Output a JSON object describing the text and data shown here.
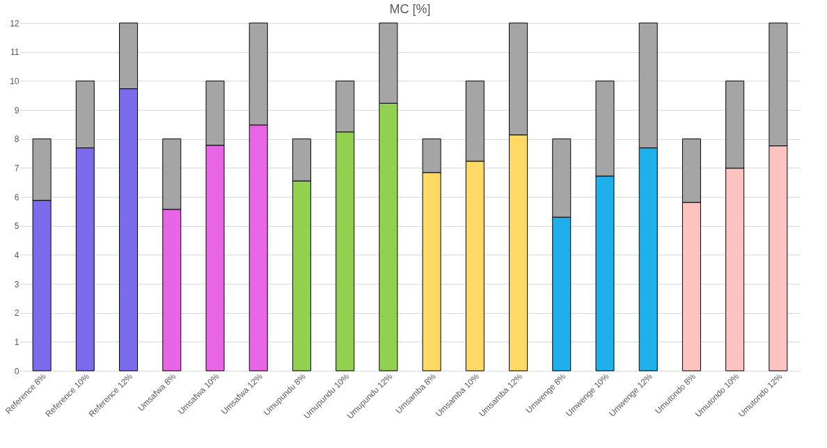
{
  "chart_data": {
    "type": "bar",
    "title": "MC [%]",
    "stacked": true,
    "categories": [
      "Reference 8%",
      "Reference 10%",
      "Reference 12%",
      "Umsafwa 8%",
      "Umsafwa 10%",
      "Umsafwa 12%",
      "Umupundu 8%",
      "Umupundu 10%",
      "Umupundu 12%",
      "Umsamba 8%",
      "Umsamba 10%",
      "Umsamba 12%",
      "Umwenge 8%",
      "Umwenge 10%",
      "Umwenge 12%",
      "Umutondo 8%",
      "Umutondo 10%",
      "Umutondo 12%"
    ],
    "series": [
      {
        "colors": [
          "#7b6cee",
          "#7b6cee",
          "#7b6cee",
          "#e866e6",
          "#e866e6",
          "#e866e6",
          "#92d050",
          "#92d050",
          "#92d050",
          "#ffd966",
          "#ffd966",
          "#ffd966",
          "#1eb0ea",
          "#1eb0ea",
          "#1eb0ea",
          "#ffc4c0",
          "#ffc4c0",
          "#ffc4c0"
        ],
        "values": [
          5.88,
          7.69,
          9.73,
          5.57,
          7.78,
          8.48,
          6.55,
          8.24,
          9.23,
          6.84,
          7.23,
          8.14,
          5.3,
          6.72,
          7.69,
          5.81,
          6.99,
          7.76
        ]
      },
      {
        "color": "#a5a5a5",
        "values": [
          2.12,
          2.31,
          2.27,
          2.43,
          2.22,
          3.52,
          1.45,
          1.76,
          2.77,
          1.16,
          2.77,
          3.86,
          2.7,
          3.28,
          4.31,
          2.19,
          3.01,
          4.24
        ]
      }
    ],
    "ylim": [
      0,
      12
    ],
    "yticks": [
      0,
      1,
      2,
      3,
      4,
      5,
      6,
      7,
      8,
      9,
      10,
      11,
      12
    ],
    "grid": "y",
    "legend": false
  }
}
